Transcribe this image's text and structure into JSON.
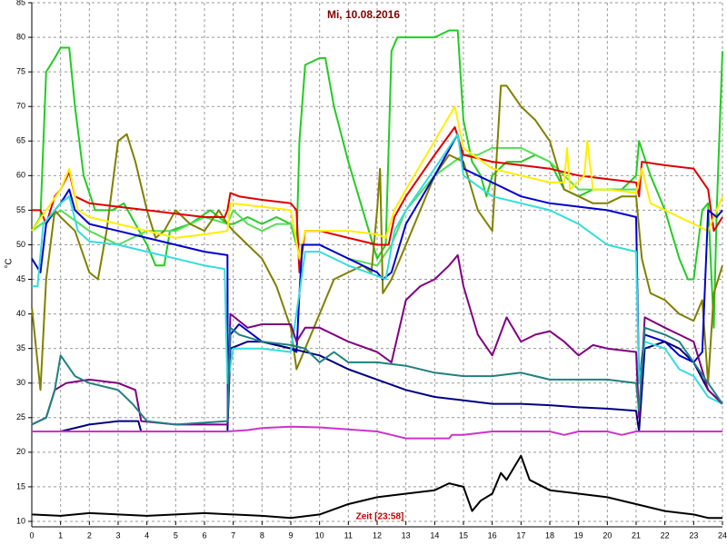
{
  "chart_data": {
    "type": "line",
    "title": "Mi, 10.08.2016",
    "x_label": "Zeit [23:58]",
    "y_label": "°C",
    "xlim": [
      0,
      24
    ],
    "xticks": [
      0,
      1,
      2,
      3,
      4,
      5,
      6,
      7,
      8,
      9,
      10,
      11,
      12,
      13,
      14,
      15,
      16,
      17,
      18,
      19,
      20,
      21,
      22,
      23,
      24
    ],
    "ylim": [
      10,
      85
    ],
    "yticks": [
      10,
      15,
      20,
      25,
      30,
      35,
      40,
      45,
      50,
      55,
      60,
      65,
      70,
      75,
      80,
      85
    ],
    "grid": true,
    "series": [
      {
        "color": "#22cc22",
        "x": [
          0,
          0.3,
          0.5,
          0.8,
          1.0,
          1.3,
          1.5,
          1.8,
          2.2,
          2.8,
          3.2,
          3.6,
          4.0,
          4.3,
          4.6,
          4.8,
          5.5,
          6.2,
          6.8,
          7.0,
          7.5,
          8.0,
          8.5,
          9.0,
          9.2,
          9.3,
          9.5,
          10.0,
          10.2,
          10.5,
          11.0,
          11.5,
          12.0,
          12.3,
          12.5,
          12.7,
          14.0,
          14.5,
          14.8,
          15.0,
          15.3,
          15.6,
          15.8,
          16.0,
          16.5,
          17.0,
          17.5,
          18.0,
          18.5,
          19.0,
          19.5,
          20.0,
          20.5,
          21.0,
          21.1,
          21.5,
          22.0,
          22.5,
          22.8,
          23.0,
          23.3,
          23.5,
          23.7,
          23.8,
          24
        ],
        "values": [
          52,
          54,
          75,
          77,
          78.5,
          78.5,
          70,
          60,
          55,
          55,
          56,
          53,
          50,
          47,
          47,
          52,
          53,
          55,
          53,
          53,
          54,
          53,
          54,
          53,
          50,
          65,
          76,
          77,
          77,
          70,
          62,
          55,
          48,
          50,
          78,
          80,
          80,
          81,
          81,
          68,
          62,
          60,
          57,
          60,
          62,
          62,
          63,
          62,
          58,
          57,
          58,
          58,
          58,
          60,
          65,
          60,
          55,
          48,
          45,
          45,
          55,
          56,
          38,
          55,
          78
        ]
      },
      {
        "color": "#55dd55",
        "x": [
          0,
          1,
          2,
          3,
          4,
          5,
          6,
          6.8,
          7,
          7.5,
          8,
          8.5,
          9,
          9.3,
          10,
          11,
          12,
          12.5,
          13,
          14,
          15,
          15.5,
          16,
          17,
          18,
          18.5,
          19,
          20,
          21
        ],
        "values": [
          52,
          55,
          52,
          50,
          52,
          52,
          54,
          53,
          55,
          53,
          52,
          53,
          53,
          50,
          50,
          48,
          47,
          50,
          55,
          60,
          63,
          63,
          64,
          64,
          62,
          60,
          58,
          58,
          58
        ]
      },
      {
        "color": "#808000",
        "x": [
          0,
          0.3,
          0.5,
          0.8,
          1.0,
          1.5,
          2,
          2.3,
          2.6,
          3.0,
          3.3,
          3.6,
          4.0,
          4.3,
          4.6,
          5,
          5.5,
          6,
          6.5,
          6.8,
          7,
          7.5,
          8,
          8.5,
          9,
          9.2,
          9.5,
          10,
          10.5,
          11,
          11.5,
          11.8,
          12.0,
          12.1,
          12.2,
          12.5,
          13,
          13.5,
          14,
          14.5,
          15,
          15.5,
          16,
          16.3,
          16.5,
          17,
          17.5,
          18,
          18.5,
          19,
          19.5,
          20,
          20.5,
          21,
          21.2,
          21.5,
          22,
          22.5,
          23,
          23.3,
          23.5,
          23.7,
          24
        ],
        "values": [
          41,
          29,
          45,
          55,
          54,
          52,
          46,
          45,
          52,
          65,
          66,
          62,
          55,
          51,
          52,
          55,
          53,
          52,
          55,
          53,
          52,
          50,
          48,
          44,
          38,
          32,
          35,
          40,
          45,
          46,
          47,
          46,
          55,
          61,
          43,
          45,
          50,
          55,
          60,
          63,
          62,
          55,
          52,
          73,
          73,
          70,
          68,
          65,
          58,
          57,
          56,
          56,
          57,
          57,
          48,
          43,
          42,
          40,
          39,
          42,
          30,
          43,
          47
        ]
      },
      {
        "color": "#dd0000",
        "x": [
          0,
          0.3,
          0.5,
          0.8,
          1.0,
          1.3,
          1.5,
          2,
          3,
          4,
          5,
          6,
          6.7,
          6.8,
          6.9,
          7.2,
          8,
          9,
          9.2,
          9.3,
          9.5,
          10,
          11,
          12,
          12.4,
          12.6,
          13,
          14,
          14.7,
          15,
          16,
          17,
          18,
          19,
          20,
          21,
          21.1,
          21.2,
          22,
          23,
          23.5,
          23.7,
          24
        ],
        "values": [
          55,
          55,
          53,
          57,
          58,
          60.5,
          57,
          56,
          55.5,
          55,
          54.5,
          54,
          54,
          55,
          57.5,
          57,
          56.5,
          56,
          55,
          46,
          52,
          52,
          51,
          50,
          50,
          54,
          57,
          63,
          67,
          63,
          62,
          61.5,
          61,
          60,
          59.5,
          59,
          57,
          62,
          61.5,
          61,
          58,
          52,
          54
        ]
      },
      {
        "color": "#ffee00",
        "x": [
          0,
          0.5,
          1.0,
          1.3,
          1.6,
          2,
          3,
          4,
          5,
          6,
          6.8,
          6.9,
          8,
          9,
          9.3,
          9.5,
          10,
          11,
          12,
          12.3,
          12.6,
          13,
          14,
          14.7,
          15,
          16,
          17,
          18,
          18.5,
          18.6,
          18.7,
          19.2,
          19.3,
          19.5,
          20,
          21,
          21.2,
          21.5,
          22,
          23,
          23.5,
          24
        ],
        "values": [
          52,
          55,
          58,
          61,
          55,
          54,
          53,
          52,
          51,
          51.5,
          52,
          56,
          55.5,
          55,
          48,
          52,
          52,
          52,
          51.5,
          51,
          55,
          58,
          65,
          70,
          64,
          61,
          60,
          59,
          59,
          64,
          58,
          60,
          65,
          58,
          58,
          57.5,
          61,
          56,
          55,
          53,
          52,
          57
        ]
      },
      {
        "color": "#0000cc",
        "x": [
          0,
          0.3,
          0.5,
          0.8,
          1.0,
          1.3,
          1.5,
          2,
          3,
          4,
          5,
          6,
          6.8,
          6.81,
          6.9,
          7.2,
          8,
          9,
          9.2,
          9.3,
          9.4,
          10,
          11,
          12,
          12.2,
          12.5,
          13,
          14,
          14.8,
          15,
          16,
          17,
          18,
          19,
          20,
          21,
          21.1,
          21.3,
          22,
          22.5,
          23,
          23.3,
          23.5,
          23.8,
          24
        ],
        "values": [
          48,
          46,
          53,
          55,
          56,
          58,
          55,
          53,
          52,
          51,
          50,
          49,
          48.5,
          25,
          37,
          38.5,
          36,
          35,
          34.5,
          43,
          50,
          50,
          48,
          46,
          45,
          46,
          53,
          60,
          66,
          61,
          59,
          57,
          56,
          55.5,
          55,
          54,
          30,
          37,
          36,
          34,
          33,
          34.5,
          55,
          54,
          55
        ]
      },
      {
        "color": "#000080",
        "x": [
          0,
          1,
          2,
          3,
          3.7,
          3.8,
          5,
          6.8,
          6.9,
          7.5,
          8,
          9,
          10,
          11,
          12,
          13,
          14,
          15,
          16,
          17,
          18,
          19,
          20,
          21,
          21.1,
          21.3,
          22,
          22.5,
          23,
          23.5,
          24
        ],
        "values": [
          23,
          23,
          24,
          24.5,
          24.5,
          23,
          23,
          23,
          35,
          36,
          36,
          35,
          34,
          32,
          30.5,
          29,
          28,
          27.5,
          27,
          27,
          26.8,
          26.5,
          26.3,
          26,
          23,
          35,
          36,
          35,
          33,
          29,
          27
        ]
      },
      {
        "color": "#33dddd",
        "x": [
          0,
          0.2,
          0.4,
          1.0,
          1.3,
          1.6,
          2,
          3,
          4,
          5,
          6,
          6.7,
          6.8,
          7,
          8,
          9,
          9.3,
          9.5,
          10,
          11,
          12,
          12.3,
          12.6,
          13,
          14,
          14.8,
          15,
          16,
          17,
          18,
          19,
          20,
          21,
          21.1,
          21.3,
          22,
          22.5,
          23,
          23.5,
          24
        ],
        "values": [
          44,
          44,
          53,
          56,
          57,
          52,
          50.5,
          50,
          49,
          48,
          47,
          46.5,
          30,
          35,
          35,
          34.5,
          43,
          49,
          49,
          47,
          45.5,
          45,
          52,
          55,
          61,
          66,
          60,
          57,
          56,
          55,
          53,
          50,
          49,
          30,
          36,
          35,
          32,
          31,
          28,
          27
        ]
      },
      {
        "color": "#800080",
        "x": [
          0,
          0.5,
          0.8,
          1.2,
          2,
          3,
          3.6,
          3.8,
          5,
          6.8,
          6.9,
          7.5,
          8,
          9,
          9.2,
          9.5,
          10,
          11,
          12,
          12.5,
          13,
          13.5,
          14,
          14.5,
          14.8,
          15,
          15.5,
          16,
          16.5,
          17,
          17.5,
          18,
          18.5,
          19,
          19.5,
          20,
          21,
          21.1,
          21.3,
          22,
          22.5,
          23,
          23.5,
          24
        ],
        "values": [
          24,
          25,
          29,
          30,
          30.5,
          30,
          29,
          24.5,
          24,
          24,
          40,
          38,
          38.5,
          38.5,
          36,
          38,
          38,
          36,
          34.5,
          33,
          42,
          44,
          45,
          47,
          48.5,
          44,
          37,
          34,
          39.5,
          36,
          37,
          37.5,
          36,
          34,
          35.5,
          35,
          34.5,
          25,
          39.5,
          38,
          37,
          36,
          29,
          27
        ]
      },
      {
        "color": "#208080",
        "x": [
          0,
          0.5,
          0.8,
          1.0,
          1.5,
          2,
          3,
          3.5,
          4,
          5,
          6.8,
          6.9,
          7.2,
          8,
          9,
          9.5,
          10,
          10.5,
          11,
          12,
          13,
          14,
          15,
          16,
          17,
          17.5,
          18,
          19,
          20,
          21,
          21.1,
          21.3,
          22,
          22.5,
          23,
          23.5,
          24
        ],
        "values": [
          24,
          25,
          29,
          34,
          31,
          30,
          29,
          27,
          24.5,
          24,
          24.5,
          38,
          37,
          36,
          35.5,
          35,
          33,
          34.5,
          33,
          33,
          32.5,
          31.5,
          31,
          31,
          31.5,
          31,
          30.5,
          30.5,
          30.5,
          30,
          26,
          38,
          37,
          36,
          33,
          30,
          27
        ]
      },
      {
        "color": "#cc33cc",
        "x": [
          0,
          5,
          6.8,
          7.5,
          8,
          9,
          10,
          11,
          12,
          12.5,
          13,
          14,
          14.5,
          14.6,
          15,
          16,
          17,
          18,
          18.5,
          19,
          20,
          20.5,
          21,
          22,
          24
        ],
        "values": [
          23,
          23,
          23,
          23.2,
          23.5,
          23.7,
          23.6,
          23.3,
          23,
          22.5,
          22,
          22,
          22,
          22.5,
          22.5,
          23,
          23,
          23,
          22.5,
          23,
          23,
          22.5,
          23,
          23,
          23
        ]
      },
      {
        "color": "#000000",
        "x": [
          0,
          1,
          2,
          3,
          4,
          5,
          6,
          7,
          8,
          9,
          10,
          11,
          12,
          13,
          14,
          14.5,
          15,
          15.3,
          15.6,
          16,
          16.3,
          16.5,
          17,
          17.3,
          18,
          19,
          20,
          21,
          22,
          23,
          23.5,
          24
        ],
        "values": [
          11,
          10.8,
          11.2,
          11,
          10.8,
          11,
          11.2,
          11,
          10.8,
          10.5,
          11,
          12.5,
          13.5,
          14,
          14.5,
          15.5,
          15,
          11.5,
          13,
          14,
          17,
          16,
          19.5,
          16,
          14.5,
          14,
          13.5,
          12.5,
          11.5,
          11,
          10.5,
          10.5
        ]
      }
    ]
  }
}
